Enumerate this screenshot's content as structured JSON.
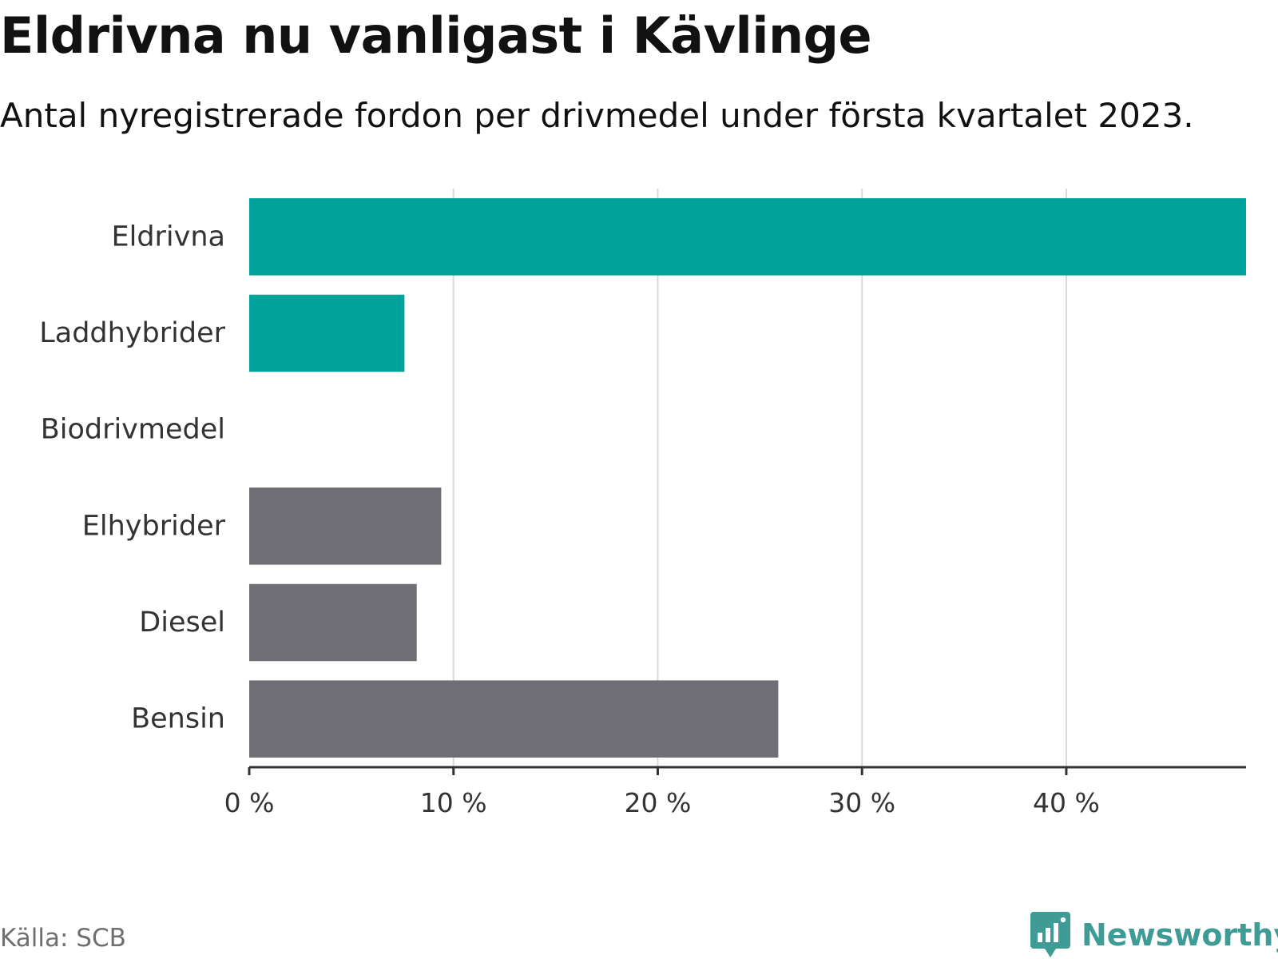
{
  "header": {
    "title": "Eldrivna nu vanligast i Kävlinge",
    "subtitle": "Antal nyregistrerade fordon per drivmedel under första kvartalet 2023."
  },
  "footer": {
    "source": "Källa: SCB",
    "brand": "Newsworthy"
  },
  "colors": {
    "highlight": "#00a39a",
    "other": "#6f6e75",
    "grid": "#d9d9d9",
    "axis": "#333333",
    "brand": "#3f9b95"
  },
  "chart_data": {
    "type": "bar",
    "orientation": "horizontal",
    "categories": [
      "Eldrivna",
      "Laddhybrider",
      "Biodrivmedel",
      "Elhybrider",
      "Diesel",
      "Bensin"
    ],
    "values": [
      48.8,
      7.6,
      0,
      9.4,
      8.2,
      25.9
    ],
    "bar_colors": [
      "highlight",
      "highlight",
      "highlight",
      "other",
      "other",
      "other"
    ],
    "xlim": [
      0,
      48.8
    ],
    "xticks": [
      0,
      10,
      20,
      30,
      40
    ],
    "xtick_labels": [
      "0 %",
      "10 %",
      "20 %",
      "30 %",
      "40 %"
    ],
    "grid": true,
    "legend": "none"
  }
}
